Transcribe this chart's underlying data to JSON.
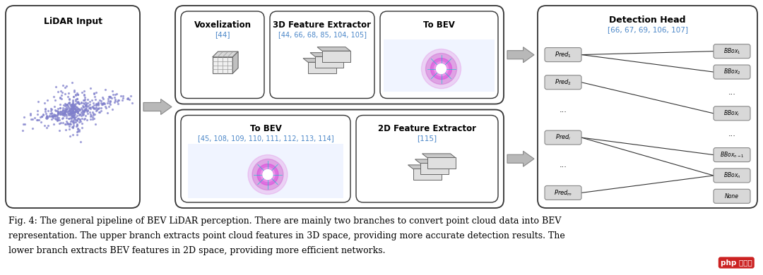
{
  "bg_color": "#ffffff",
  "fig_caption_line1": "Fig. 4: The general pipeline of BEV LiDAR perception. There are mainly two branches to convert point cloud data into BEV",
  "fig_caption_line2": "representation. The upper branch extracts point cloud features in 3D space, providing more accurate detection results. The",
  "fig_caption_line3": "lower branch extracts BEV features in 2D space, providing more efficient networks.",
  "lidar_title": "LiDAR Input",
  "ref_color": "#4a86c8",
  "arrow_color": "#b0b0b0",
  "detection_title": "Detection Head",
  "detection_ref": "[66, 67, 69, 106, 107]"
}
